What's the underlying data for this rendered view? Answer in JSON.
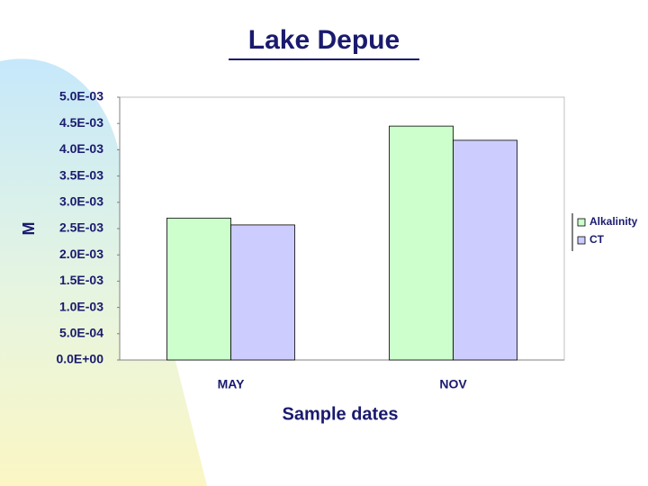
{
  "chart_data": {
    "type": "bar",
    "title": "Lake Depue",
    "x_label": "Sample dates",
    "y_label": "M",
    "categories": [
      "MAY",
      "NOV"
    ],
    "series": [
      {
        "name": "Alkalinity",
        "color": "#ccffcc",
        "values": [
          0.0027,
          0.00445
        ]
      },
      {
        "name": "CT",
        "color": "#ccccff",
        "values": [
          0.00257,
          0.00418
        ]
      }
    ],
    "ylim": [
      0,
      0.005
    ],
    "yticks": [
      {
        "value": 0,
        "label": "0.0E+00"
      },
      {
        "value": 0.0005,
        "label": "5.0E-04"
      },
      {
        "value": 0.001,
        "label": "1.0E-03"
      },
      {
        "value": 0.0015,
        "label": "1.5E-03"
      },
      {
        "value": 0.002,
        "label": "2.0E-03"
      },
      {
        "value": 0.0025,
        "label": "2.5E-03"
      },
      {
        "value": 0.003,
        "label": "3.0E-03"
      },
      {
        "value": 0.0035,
        "label": "3.5E-03"
      },
      {
        "value": 0.004,
        "label": "4.0E-03"
      },
      {
        "value": 0.0045,
        "label": "4.5E-03"
      },
      {
        "value": 0.005,
        "label": "5.0E-03"
      }
    ],
    "legend": "right"
  }
}
